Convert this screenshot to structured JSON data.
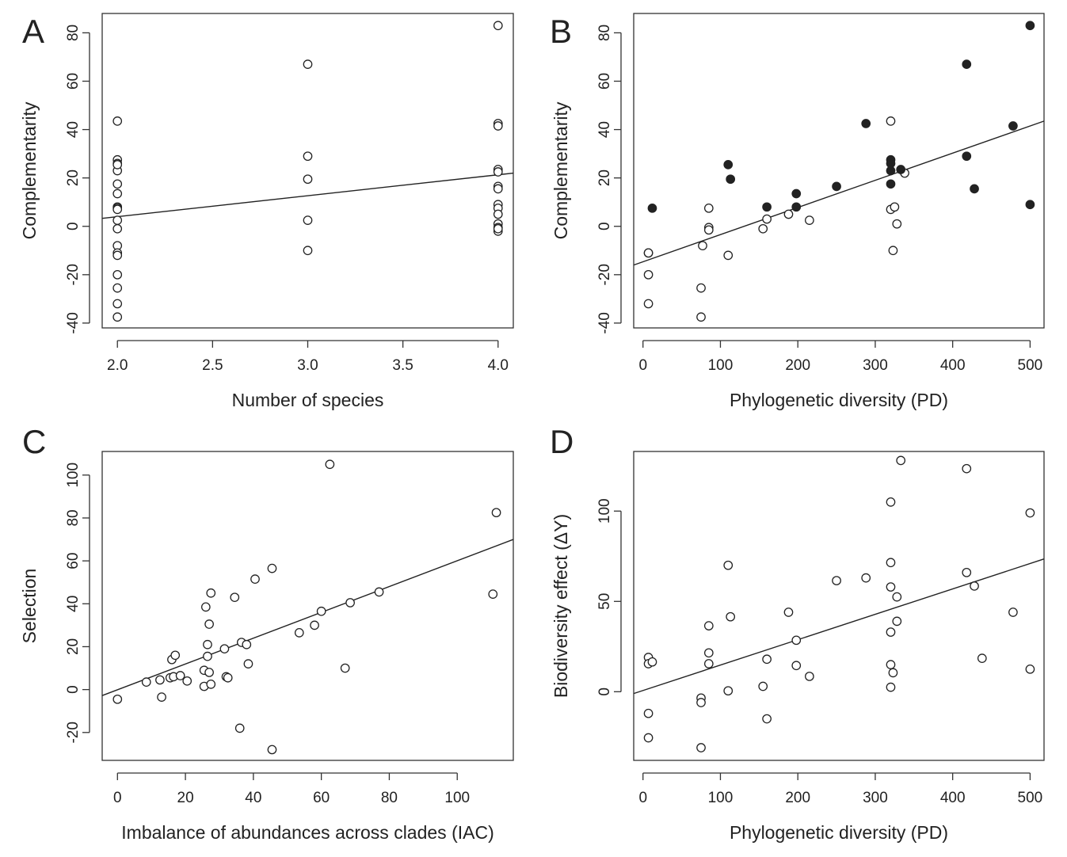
{
  "chart_data": [
    {
      "type": "scatter",
      "panel": "A",
      "xlabel": "Number of species",
      "ylabel": "Complementarity",
      "xlim": [
        1.92,
        4.08
      ],
      "ylim": [
        -42,
        88
      ],
      "xticks": [
        2.0,
        2.5,
        3.0,
        3.5,
        4.0
      ],
      "xtick_labels": [
        "2.0",
        "2.5",
        "3.0",
        "3.5",
        "4.0"
      ],
      "yticks": [
        -40,
        -20,
        0,
        20,
        40,
        60,
        80
      ],
      "ytick_labels": [
        "-40",
        "-20",
        "0",
        "20",
        "40",
        "60",
        "80"
      ],
      "grid": false,
      "series": [
        {
          "style": "open",
          "x": [
            2,
            2,
            2,
            2,
            2,
            2,
            2,
            2,
            2,
            2,
            2,
            2,
            2,
            2,
            2,
            2,
            2,
            2,
            2,
            3,
            3,
            3,
            3,
            3,
            4,
            4,
            4,
            4,
            4,
            4,
            4,
            4,
            4,
            4,
            4,
            4,
            4,
            4
          ],
          "y": [
            43.5,
            27.5,
            26,
            23,
            17.5,
            13.5,
            8,
            7.5,
            2.5,
            -1,
            -8,
            -11,
            -12,
            -20,
            -25.5,
            -32,
            -37.5,
            25.5,
            7,
            67,
            29,
            19.5,
            2.5,
            -10,
            83,
            42.5,
            41.5,
            23.5,
            22.5,
            16.5,
            15.5,
            9,
            7.5,
            5,
            1,
            -0.5,
            -2,
            -1
          ]
        }
      ],
      "fit_line": {
        "x": [
          1.92,
          4.08
        ],
        "y": [
          3.3,
          22
        ]
      }
    },
    {
      "type": "scatter",
      "panel": "B",
      "xlabel": "Phylogenetic diversity (PD)",
      "ylabel": "Complementarity",
      "xlim": [
        -12,
        518
      ],
      "ylim": [
        -42,
        88
      ],
      "xticks": [
        0,
        100,
        200,
        300,
        400,
        500
      ],
      "xtick_labels": [
        "0",
        "100",
        "200",
        "300",
        "400",
        "500"
      ],
      "yticks": [
        -40,
        -20,
        0,
        20,
        40,
        60,
        80
      ],
      "ytick_labels": [
        "-40",
        "-20",
        "0",
        "20",
        "40",
        "60",
        "80"
      ],
      "grid": false,
      "series": [
        {
          "style": "open",
          "x": [
            7,
            7,
            7,
            7,
            75,
            75,
            77,
            85,
            85,
            85,
            110,
            155,
            160,
            188,
            215,
            320,
            320,
            323,
            325,
            328,
            338
          ],
          "y": [
            -11,
            -11,
            -20,
            -32,
            -25.5,
            -37.5,
            -8,
            7.5,
            -0.5,
            -1.5,
            -12,
            -1,
            3,
            5,
            2.5,
            43.5,
            7,
            -10,
            8,
            1,
            22
          ]
        },
        {
          "style": "filled",
          "x": [
            12,
            110,
            113,
            160,
            198,
            198,
            250,
            288,
            320,
            320,
            320,
            320,
            333,
            418,
            418,
            428,
            478,
            500,
            500
          ],
          "y": [
            7.5,
            25.5,
            19.5,
            8,
            13.5,
            8,
            16.5,
            42.5,
            27.5,
            26,
            23,
            17.5,
            23.5,
            67,
            29,
            15.5,
            41.5,
            83,
            9
          ]
        }
      ],
      "fit_line": {
        "x": [
          -12,
          518
        ],
        "y": [
          -16,
          43.5
        ]
      }
    },
    {
      "type": "scatter",
      "panel": "C",
      "xlabel": "Imbalance of abundances across clades (IAC)",
      "ylabel": "Selection",
      "xlim": [
        -4.5,
        116.5
      ],
      "ylim": [
        -33,
        111
      ],
      "xticks": [
        0,
        20,
        40,
        60,
        80,
        100
      ],
      "xtick_labels": [
        "0",
        "20",
        "40",
        "60",
        "80",
        "100"
      ],
      "yticks": [
        -20,
        0,
        20,
        40,
        60,
        80,
        100
      ],
      "ytick_labels": [
        "-20",
        "0",
        "20",
        "40",
        "60",
        "80",
        "100"
      ],
      "grid": false,
      "series": [
        {
          "style": "open",
          "x": [
            0,
            8.5,
            12.5,
            13,
            15.5,
            16,
            16.5,
            17,
            18.5,
            20.5,
            25.5,
            25.5,
            26,
            26.5,
            26.5,
            27,
            27,
            27.5,
            27.5,
            31.5,
            32,
            32.5,
            34.5,
            36,
            36.5,
            38,
            38.5,
            40.5,
            45.5,
            45.5,
            53.5,
            58,
            60,
            62.5,
            67,
            68.5,
            77,
            110.5,
            111.5
          ],
          "y": [
            -4.5,
            3.5,
            4.5,
            -3.5,
            5.5,
            14,
            6,
            16,
            6.5,
            4,
            1.5,
            9,
            38.5,
            21,
            15.5,
            30.5,
            8,
            45,
            2.5,
            19,
            6,
            5.5,
            43,
            -18,
            22,
            21,
            12,
            51.5,
            -28,
            56.5,
            26.5,
            30,
            36.5,
            105,
            10,
            40.5,
            45.5,
            44.5,
            82.5
          ]
        }
      ],
      "fit_line": {
        "x": [
          -4.5,
          116.5
        ],
        "y": [
          -2.8,
          70
        ]
      }
    },
    {
      "type": "scatter",
      "panel": "D",
      "xlabel": "Phylogenetic diversity (PD)",
      "ylabel": "Biodiversity effect (ΔY)",
      "xlim": [
        -12,
        518
      ],
      "ylim": [
        -38,
        133
      ],
      "xticks": [
        0,
        100,
        200,
        300,
        400,
        500
      ],
      "xtick_labels": [
        "0",
        "100",
        "200",
        "300",
        "400",
        "500"
      ],
      "yticks": [
        0,
        50,
        100
      ],
      "ytick_labels": [
        "0",
        "50",
        "100"
      ],
      "grid": false,
      "series": [
        {
          "style": "open",
          "x": [
            7,
            7,
            7,
            7,
            12,
            75,
            75,
            75,
            85,
            85,
            85,
            110,
            110,
            113,
            155,
            160,
            160,
            188,
            198,
            198,
            215,
            250,
            288,
            320,
            320,
            320,
            320,
            320,
            320,
            323,
            328,
            328,
            333,
            418,
            418,
            428,
            438,
            478,
            500,
            500
          ],
          "y": [
            19,
            15.5,
            -12,
            -25.5,
            16.5,
            -3.5,
            -6,
            -31,
            36.5,
            21.5,
            15.5,
            70,
            0.5,
            41.5,
            3,
            -15,
            18,
            44,
            28.5,
            14.5,
            8.5,
            61.5,
            63,
            105,
            71.5,
            58,
            33,
            15,
            2.5,
            10.5,
            52.5,
            39,
            128,
            123.5,
            66,
            58.5,
            18.5,
            44,
            99,
            12.5
          ]
        }
      ],
      "fit_line": {
        "x": [
          -12,
          518
        ],
        "y": [
          -1,
          73.5
        ]
      }
    }
  ]
}
